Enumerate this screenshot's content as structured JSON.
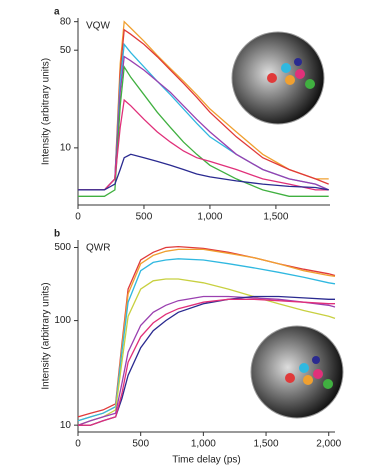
{
  "chart_data": [
    {
      "type": "line",
      "label": "a",
      "annotation": "VQW",
      "y_label": "Intensity (arbitrary units)",
      "log_y": true,
      "x": [
        0,
        100,
        200,
        280,
        320,
        350,
        400,
        500,
        600,
        700,
        800,
        900,
        1000,
        1200,
        1400,
        1600,
        1800,
        1900
      ],
      "xlim": [
        0,
        1910
      ],
      "xticks": [
        0,
        500,
        {
          "value": 1000,
          "label": "1,000"
        },
        {
          "value": 1500,
          "label": "1,500"
        }
      ],
      "ylim": [
        3.9,
        85
      ],
      "yticks": [
        10,
        50,
        80
      ],
      "series": [
        {
          "color": "#f0a030",
          "values": [
            5,
            5,
            5,
            6,
            40,
            80,
            72,
            58,
            46,
            37,
            30,
            24,
            19,
            13,
            9,
            7,
            6,
            6
          ]
        },
        {
          "color": "#e03a3a",
          "values": [
            5,
            5,
            5,
            6,
            35,
            70,
            65,
            55,
            45,
            36,
            29,
            23,
            18,
            12,
            8.5,
            7,
            6,
            5.5
          ]
        },
        {
          "color": "#30b8e0",
          "values": [
            5,
            5,
            5,
            6,
            30,
            55,
            48,
            38,
            30,
            24,
            19,
            15,
            12,
            9,
            7,
            6,
            5.5,
            5
          ]
        },
        {
          "color": "#9a40b0",
          "values": [
            5,
            5,
            5,
            6,
            25,
            45,
            42,
            36,
            30,
            25,
            20,
            16,
            13,
            9,
            7,
            6,
            5.5,
            5
          ]
        },
        {
          "color": "#40b040",
          "values": [
            4.5,
            4.5,
            4.5,
            5,
            20,
            38,
            32,
            24,
            18,
            14,
            11,
            9,
            7.5,
            6,
            5,
            4.5,
            4.5,
            4.5
          ]
        },
        {
          "color": "#e0307a",
          "values": [
            5,
            5,
            5,
            6,
            14,
            22,
            20,
            16,
            13,
            11,
            9.5,
            8.5,
            8,
            7,
            6,
            5.5,
            5,
            5
          ]
        },
        {
          "color": "#2a2a90",
          "values": [
            5,
            5,
            5,
            5.5,
            7,
            8.5,
            9,
            8.5,
            8,
            7.5,
            7,
            6.5,
            6.2,
            5.8,
            5.5,
            5.3,
            5.2,
            5
          ]
        }
      ]
    },
    {
      "type": "line",
      "label": "b",
      "annotation": "QWR",
      "y_label": "Intensity (arbitrary units)",
      "x_label": "Time delay (ps)",
      "log_y": true,
      "x": [
        0,
        100,
        200,
        300,
        350,
        400,
        500,
        600,
        700,
        800,
        1000,
        1200,
        1400,
        1600,
        1800,
        2000,
        2050
      ],
      "xlim": [
        0,
        2050
      ],
      "xticks": [
        0,
        500,
        {
          "value": 1000,
          "label": "1,000"
        },
        {
          "value": 1500,
          "label": "1,500"
        },
        {
          "value": 2000,
          "label": "2,000"
        }
      ],
      "ylim": [
        8.6,
        590
      ],
      "yticks": [
        10,
        100,
        500
      ],
      "series": [
        {
          "color": "#e03a3a",
          "values": [
            12,
            13,
            14,
            16,
            60,
            200,
            380,
            450,
            500,
            510,
            490,
            450,
            400,
            350,
            310,
            280,
            270
          ]
        },
        {
          "color": "#f0a030",
          "values": [
            11,
            12,
            13,
            15,
            55,
            180,
            350,
            420,
            460,
            480,
            480,
            440,
            400,
            350,
            300,
            270,
            265
          ]
        },
        {
          "color": "#30b8e0",
          "values": [
            11,
            12,
            13,
            15,
            50,
            150,
            300,
            360,
            380,
            390,
            380,
            350,
            320,
            290,
            260,
            230,
            225
          ]
        },
        {
          "color": "#c8d040",
          "values": [
            10,
            11,
            12,
            14,
            40,
            110,
            200,
            240,
            250,
            250,
            230,
            200,
            170,
            145,
            125,
            110,
            105
          ]
        },
        {
          "color": "#9a40b0",
          "values": [
            10,
            11,
            12,
            13,
            25,
            50,
            90,
            120,
            140,
            155,
            170,
            170,
            165,
            160,
            150,
            140,
            135
          ]
        },
        {
          "color": "#2a2a90",
          "values": [
            10,
            10,
            11,
            12,
            18,
            30,
            55,
            80,
            100,
            120,
            145,
            160,
            170,
            170,
            165,
            160,
            160
          ]
        },
        {
          "color": "#e0307a",
          "values": [
            10,
            10,
            11,
            12,
            20,
            40,
            70,
            95,
            115,
            130,
            150,
            160,
            160,
            155,
            150,
            145,
            145
          ]
        }
      ]
    }
  ]
}
